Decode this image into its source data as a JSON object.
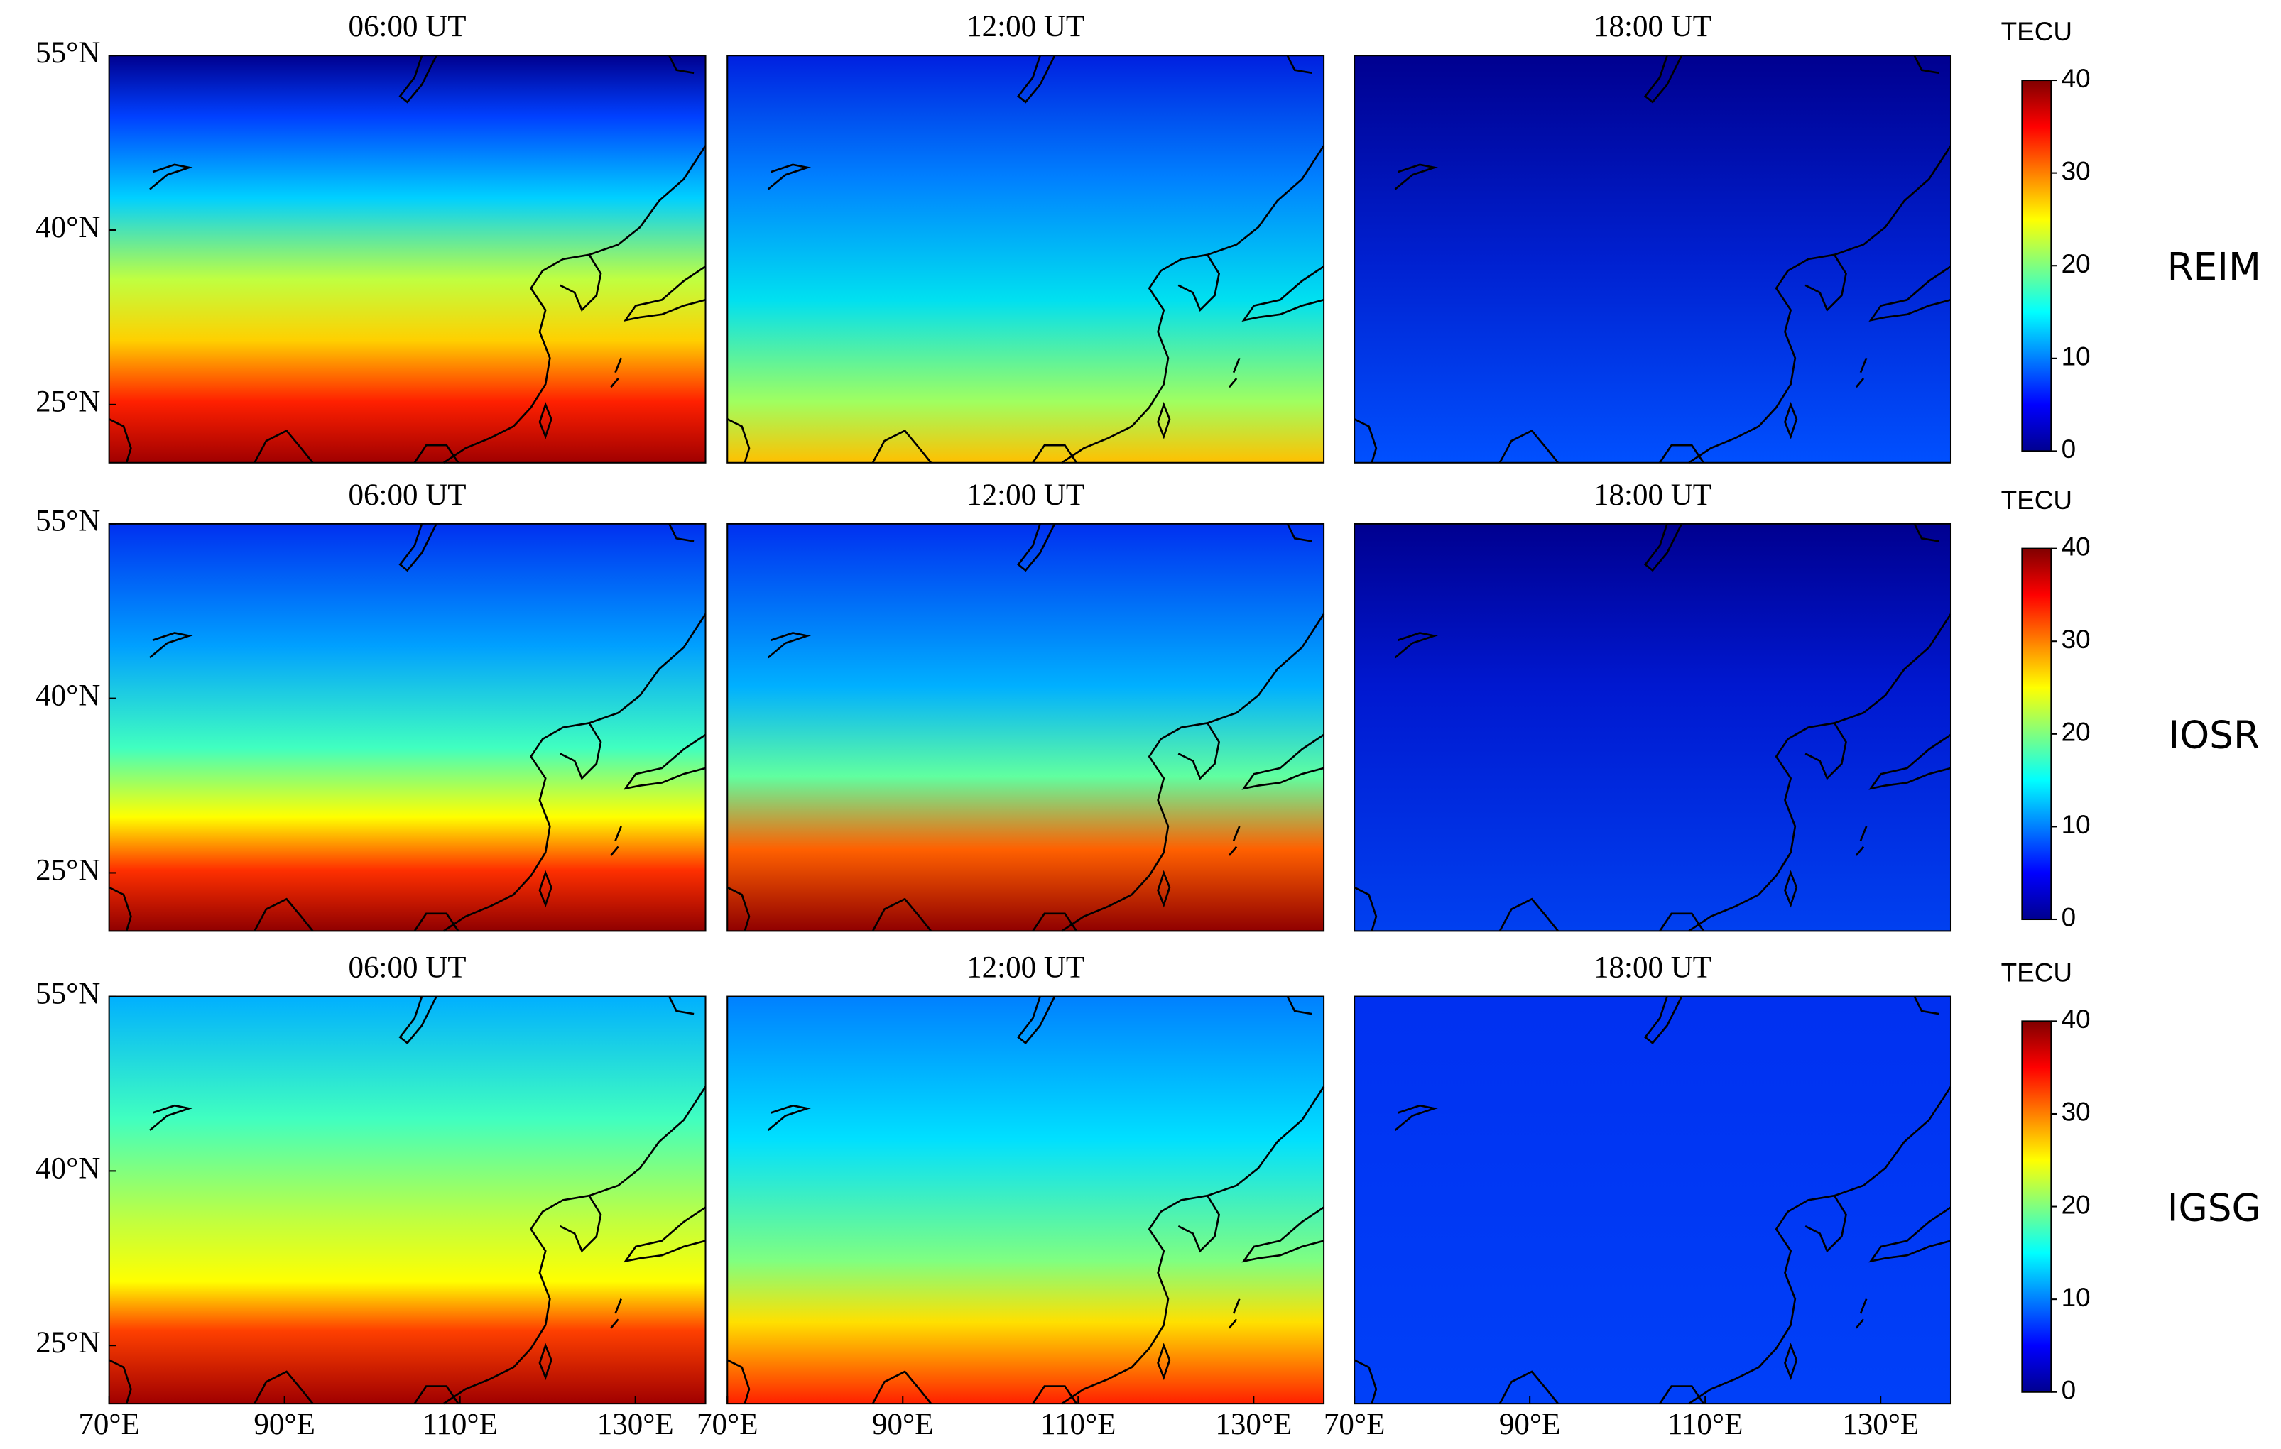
{
  "rows": [
    {
      "label": "REIM",
      "panels": [
        {
          "title": "06:00 UT"
        },
        {
          "title": "12:00 UT"
        },
        {
          "title": "18:00 UT"
        }
      ],
      "colorbar": {
        "title": "TECU",
        "lim": [
          0,
          40
        ],
        "ticks": [
          0,
          10,
          20,
          30,
          40
        ]
      }
    },
    {
      "label": "IOSR",
      "panels": [
        {
          "title": "06:00 UT"
        },
        {
          "title": "12:00 UT"
        },
        {
          "title": "18:00 UT"
        }
      ],
      "colorbar": {
        "title": "TECU",
        "lim": [
          0,
          40
        ],
        "ticks": [
          0,
          10,
          20,
          30,
          40
        ]
      }
    },
    {
      "label": "IGSG",
      "panels": [
        {
          "title": "06:00 UT"
        },
        {
          "title": "12:00 UT"
        },
        {
          "title": "18:00 UT"
        }
      ],
      "colorbar": {
        "title": "TECU",
        "lim": [
          0,
          40
        ],
        "ticks": [
          0,
          10,
          20,
          30,
          40
        ]
      }
    }
  ],
  "lat": {
    "lim": [
      20,
      55
    ],
    "ticks": [
      {
        "value": 55,
        "label": "55°N"
      },
      {
        "value": 40,
        "label": "40°N"
      },
      {
        "value": 25,
        "label": "25°N"
      }
    ]
  },
  "lon": {
    "lim": [
      70,
      138
    ],
    "ticks": [
      {
        "value": 70,
        "label": "70°E"
      },
      {
        "value": 90,
        "label": "90°E"
      },
      {
        "value": 110,
        "label": "110°E"
      },
      {
        "value": 130,
        "label": "130°E"
      }
    ]
  }
}
